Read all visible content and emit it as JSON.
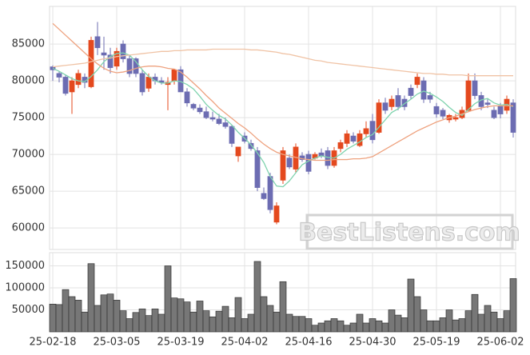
{
  "chart_data": [
    {
      "type": "candlestick",
      "watermark": "BestListens.com",
      "up_color": "#e4491e",
      "down_color": "#6c6cb2",
      "grid": true,
      "ylim": [
        57300,
        89900
      ],
      "yticks": [
        60000,
        65000,
        70000,
        75000,
        80000,
        85000
      ],
      "open": [
        81900,
        81000,
        80500,
        78500,
        79500,
        80500,
        79200,
        86000,
        83800,
        83500,
        82000,
        85000,
        83000,
        83000,
        81000,
        79000,
        80500,
        80000,
        79500,
        80000,
        81500,
        78500,
        76800,
        76300,
        75800,
        75000,
        74800,
        74300,
        73800,
        69800,
        72500,
        71500,
        70500,
        64700,
        67000,
        60800,
        66500,
        69500,
        68000,
        69800,
        70000,
        69500,
        70200,
        70500,
        68500,
        70800,
        71500,
        72500,
        71200,
        72800,
        74500,
        73000,
        77000,
        76500,
        78000,
        77500,
        79000,
        79500,
        80000,
        78000,
        76500,
        76000,
        74700,
        74800,
        75000,
        76000,
        80000,
        78000,
        77000,
        76000,
        76500,
        76000,
        77000
      ],
      "high": [
        82100,
        81300,
        80800,
        80500,
        81500,
        81000,
        86000,
        88000,
        86000,
        84500,
        84500,
        85500,
        83500,
        83200,
        81500,
        81000,
        81000,
        80500,
        80500,
        81500,
        82000,
        79000,
        77000,
        76800,
        76500,
        75800,
        75500,
        75000,
        74000,
        71000,
        73000,
        72000,
        71000,
        65500,
        67500,
        63500,
        71000,
        70000,
        71500,
        70300,
        70500,
        70300,
        70800,
        71000,
        71000,
        72000,
        73300,
        73000,
        73300,
        74500,
        75500,
        77500,
        77700,
        78000,
        79000,
        78000,
        79500,
        81000,
        80500,
        78500,
        77000,
        76300,
        75500,
        75500,
        76500,
        81000,
        81000,
        78500,
        77500,
        76500,
        77000,
        78000,
        77500
      ],
      "low": [
        80000,
        79800,
        78000,
        75500,
        79000,
        79000,
        79000,
        83500,
        81500,
        81000,
        81500,
        82500,
        80500,
        80500,
        78000,
        78500,
        79500,
        79500,
        76000,
        79500,
        78500,
        76500,
        76000,
        75500,
        74800,
        74500,
        74000,
        73500,
        71000,
        69000,
        71500,
        70500,
        65000,
        63800,
        62000,
        60500,
        66000,
        68000,
        67500,
        69000,
        67300,
        69300,
        69500,
        68000,
        68200,
        70300,
        71000,
        71500,
        71000,
        72300,
        71500,
        72800,
        75500,
        76000,
        76000,
        76000,
        77500,
        79000,
        77000,
        77000,
        75000,
        74800,
        74300,
        74500,
        74800,
        75800,
        77500,
        76000,
        76300,
        74800,
        74900,
        75500,
        72300
      ],
      "close": [
        81500,
        80500,
        78300,
        80000,
        81000,
        79800,
        85500,
        84500,
        83500,
        81800,
        84000,
        83000,
        81000,
        81000,
        78500,
        80500,
        80000,
        79800,
        79800,
        81500,
        78500,
        77000,
        76300,
        75800,
        75000,
        74800,
        74200,
        73800,
        71500,
        71000,
        71800,
        70800,
        65500,
        64000,
        62500,
        63000,
        70500,
        68300,
        71000,
        69300,
        67700,
        70000,
        69800,
        68500,
        70500,
        71600,
        72800,
        71800,
        72800,
        73500,
        72000,
        77000,
        76000,
        77500,
        76500,
        76500,
        78000,
        80500,
        77500,
        77500,
        75500,
        75200,
        75300,
        75000,
        76000,
        80000,
        78000,
        76500,
        76800,
        75000,
        75500,
        77500,
        73000
      ],
      "moving_averages": [
        {
          "color": "#7fd3ae",
          "values": [
            81700,
            81300,
            80800,
            80300,
            80000,
            79900,
            80600,
            81500,
            82600,
            83300,
            83700,
            83800,
            83500,
            82600,
            81500,
            80600,
            80000,
            79700,
            79700,
            80000,
            79900,
            79500,
            78900,
            77900,
            76800,
            76000,
            75300,
            74800,
            74000,
            73000,
            72200,
            71300,
            70200,
            68900,
            67000,
            65700,
            65600,
            66400,
            67500,
            68600,
            69100,
            69500,
            69800,
            69600,
            69500,
            70000,
            70700,
            71200,
            71700,
            72300,
            72700,
            73700,
            74700,
            75700,
            76200,
            76900,
            77500,
            78200,
            78600,
            78300,
            77800,
            77200,
            76400,
            75700,
            75300,
            76100,
            76900,
            77400,
            77600,
            77000,
            76700,
            76800,
            76500
          ]
        },
        {
          "color": "#eea27f",
          "values": [
            87800,
            87000,
            86200,
            85400,
            84600,
            83800,
            83000,
            82300,
            81700,
            81300,
            81100,
            81200,
            81400,
            81700,
            81900,
            82000,
            82000,
            81900,
            81700,
            81600,
            81200,
            80500,
            79700,
            78900,
            78000,
            77200,
            76300,
            75600,
            74900,
            74200,
            73600,
            72900,
            72100,
            71400,
            70800,
            70300,
            70000,
            69800,
            69600,
            69400,
            69300,
            69200,
            69200,
            69200,
            69300,
            69300,
            69300,
            69400,
            69400,
            69500,
            69700,
            70200,
            70700,
            71200,
            71700,
            72200,
            72700,
            73200,
            73600,
            74000,
            74400,
            74700,
            75000,
            75200,
            75500,
            75800,
            76100,
            76300,
            76500,
            76600,
            76600,
            76600,
            76600
          ]
        },
        {
          "color": "#f0c3a5",
          "values": [
            81900,
            82000,
            82100,
            82200,
            82300,
            82400,
            82600,
            82800,
            83000,
            83100,
            83300,
            83400,
            83500,
            83600,
            83700,
            83800,
            83900,
            84000,
            84000,
            84100,
            84100,
            84200,
            84200,
            84200,
            84200,
            84300,
            84300,
            84300,
            84300,
            84300,
            84300,
            84200,
            84200,
            84100,
            84000,
            83900,
            83700,
            83600,
            83400,
            83200,
            83000,
            82800,
            82700,
            82500,
            82400,
            82300,
            82200,
            82100,
            82000,
            81900,
            81800,
            81700,
            81600,
            81500,
            81400,
            81300,
            81200,
            81100,
            81000,
            81000,
            80900,
            80900,
            80800,
            80800,
            80800,
            80700,
            80700,
            80700,
            80700,
            80700,
            80700,
            80700,
            80700
          ]
        }
      ]
    },
    {
      "type": "bar",
      "color": "#777777",
      "grid": true,
      "ylim": [
        0,
        180000
      ],
      "yticks": [
        50000,
        100000,
        150000
      ],
      "categories": [
        "25-02-18",
        null,
        null,
        null,
        null,
        null,
        null,
        null,
        null,
        null,
        "25-03-05",
        null,
        null,
        null,
        null,
        null,
        null,
        null,
        null,
        null,
        "25-03-19",
        null,
        null,
        null,
        null,
        null,
        null,
        null,
        null,
        null,
        "25-04-02",
        null,
        null,
        null,
        null,
        null,
        null,
        null,
        null,
        null,
        "25-04-16",
        null,
        null,
        null,
        null,
        null,
        null,
        null,
        null,
        null,
        "25-04-30",
        null,
        null,
        null,
        null,
        null,
        null,
        null,
        null,
        null,
        "25-05-19",
        null,
        null,
        null,
        null,
        null,
        null,
        null,
        null,
        null,
        "25-06-02",
        null,
        null
      ],
      "values": [
        63000,
        62000,
        96000,
        80000,
        72000,
        45000,
        155000,
        60000,
        84000,
        86000,
        72000,
        48000,
        30000,
        44000,
        52000,
        37000,
        52000,
        40000,
        150000,
        77000,
        75000,
        68000,
        45000,
        70000,
        48000,
        34000,
        47000,
        58000,
        32000,
        78000,
        30000,
        40000,
        160000,
        80000,
        60000,
        45000,
        114000,
        40000,
        35000,
        35000,
        30000,
        15000,
        20000,
        25000,
        30000,
        25000,
        15000,
        20000,
        40000,
        20000,
        30000,
        25000,
        20000,
        50000,
        38000,
        32000,
        120000,
        80000,
        50000,
        25000,
        25000,
        32000,
        50000,
        27000,
        30000,
        48000,
        85000,
        40000,
        60000,
        45000,
        30000,
        48000,
        121000
      ]
    }
  ]
}
